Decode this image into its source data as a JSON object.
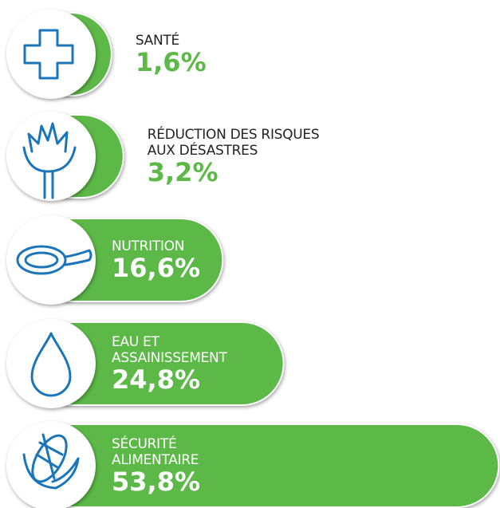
{
  "chart_data": {
    "type": "bar",
    "orientation": "horizontal",
    "color": "#5cb947",
    "categories": [
      "SANTÉ",
      "RÉDUCTION DES RISQUES\nAUX DÉSASTRES",
      "NUTRITION",
      "EAU ET\nASSAINISSEMENT",
      "SÉCURITÉ\nALIMENTAIRE"
    ],
    "values": [
      1.6,
      3.2,
      16.6,
      24.8,
      53.8
    ],
    "value_labels": [
      "1,6%",
      "3,2%",
      "16,6%",
      "24,8%",
      "53,8%"
    ]
  }
}
